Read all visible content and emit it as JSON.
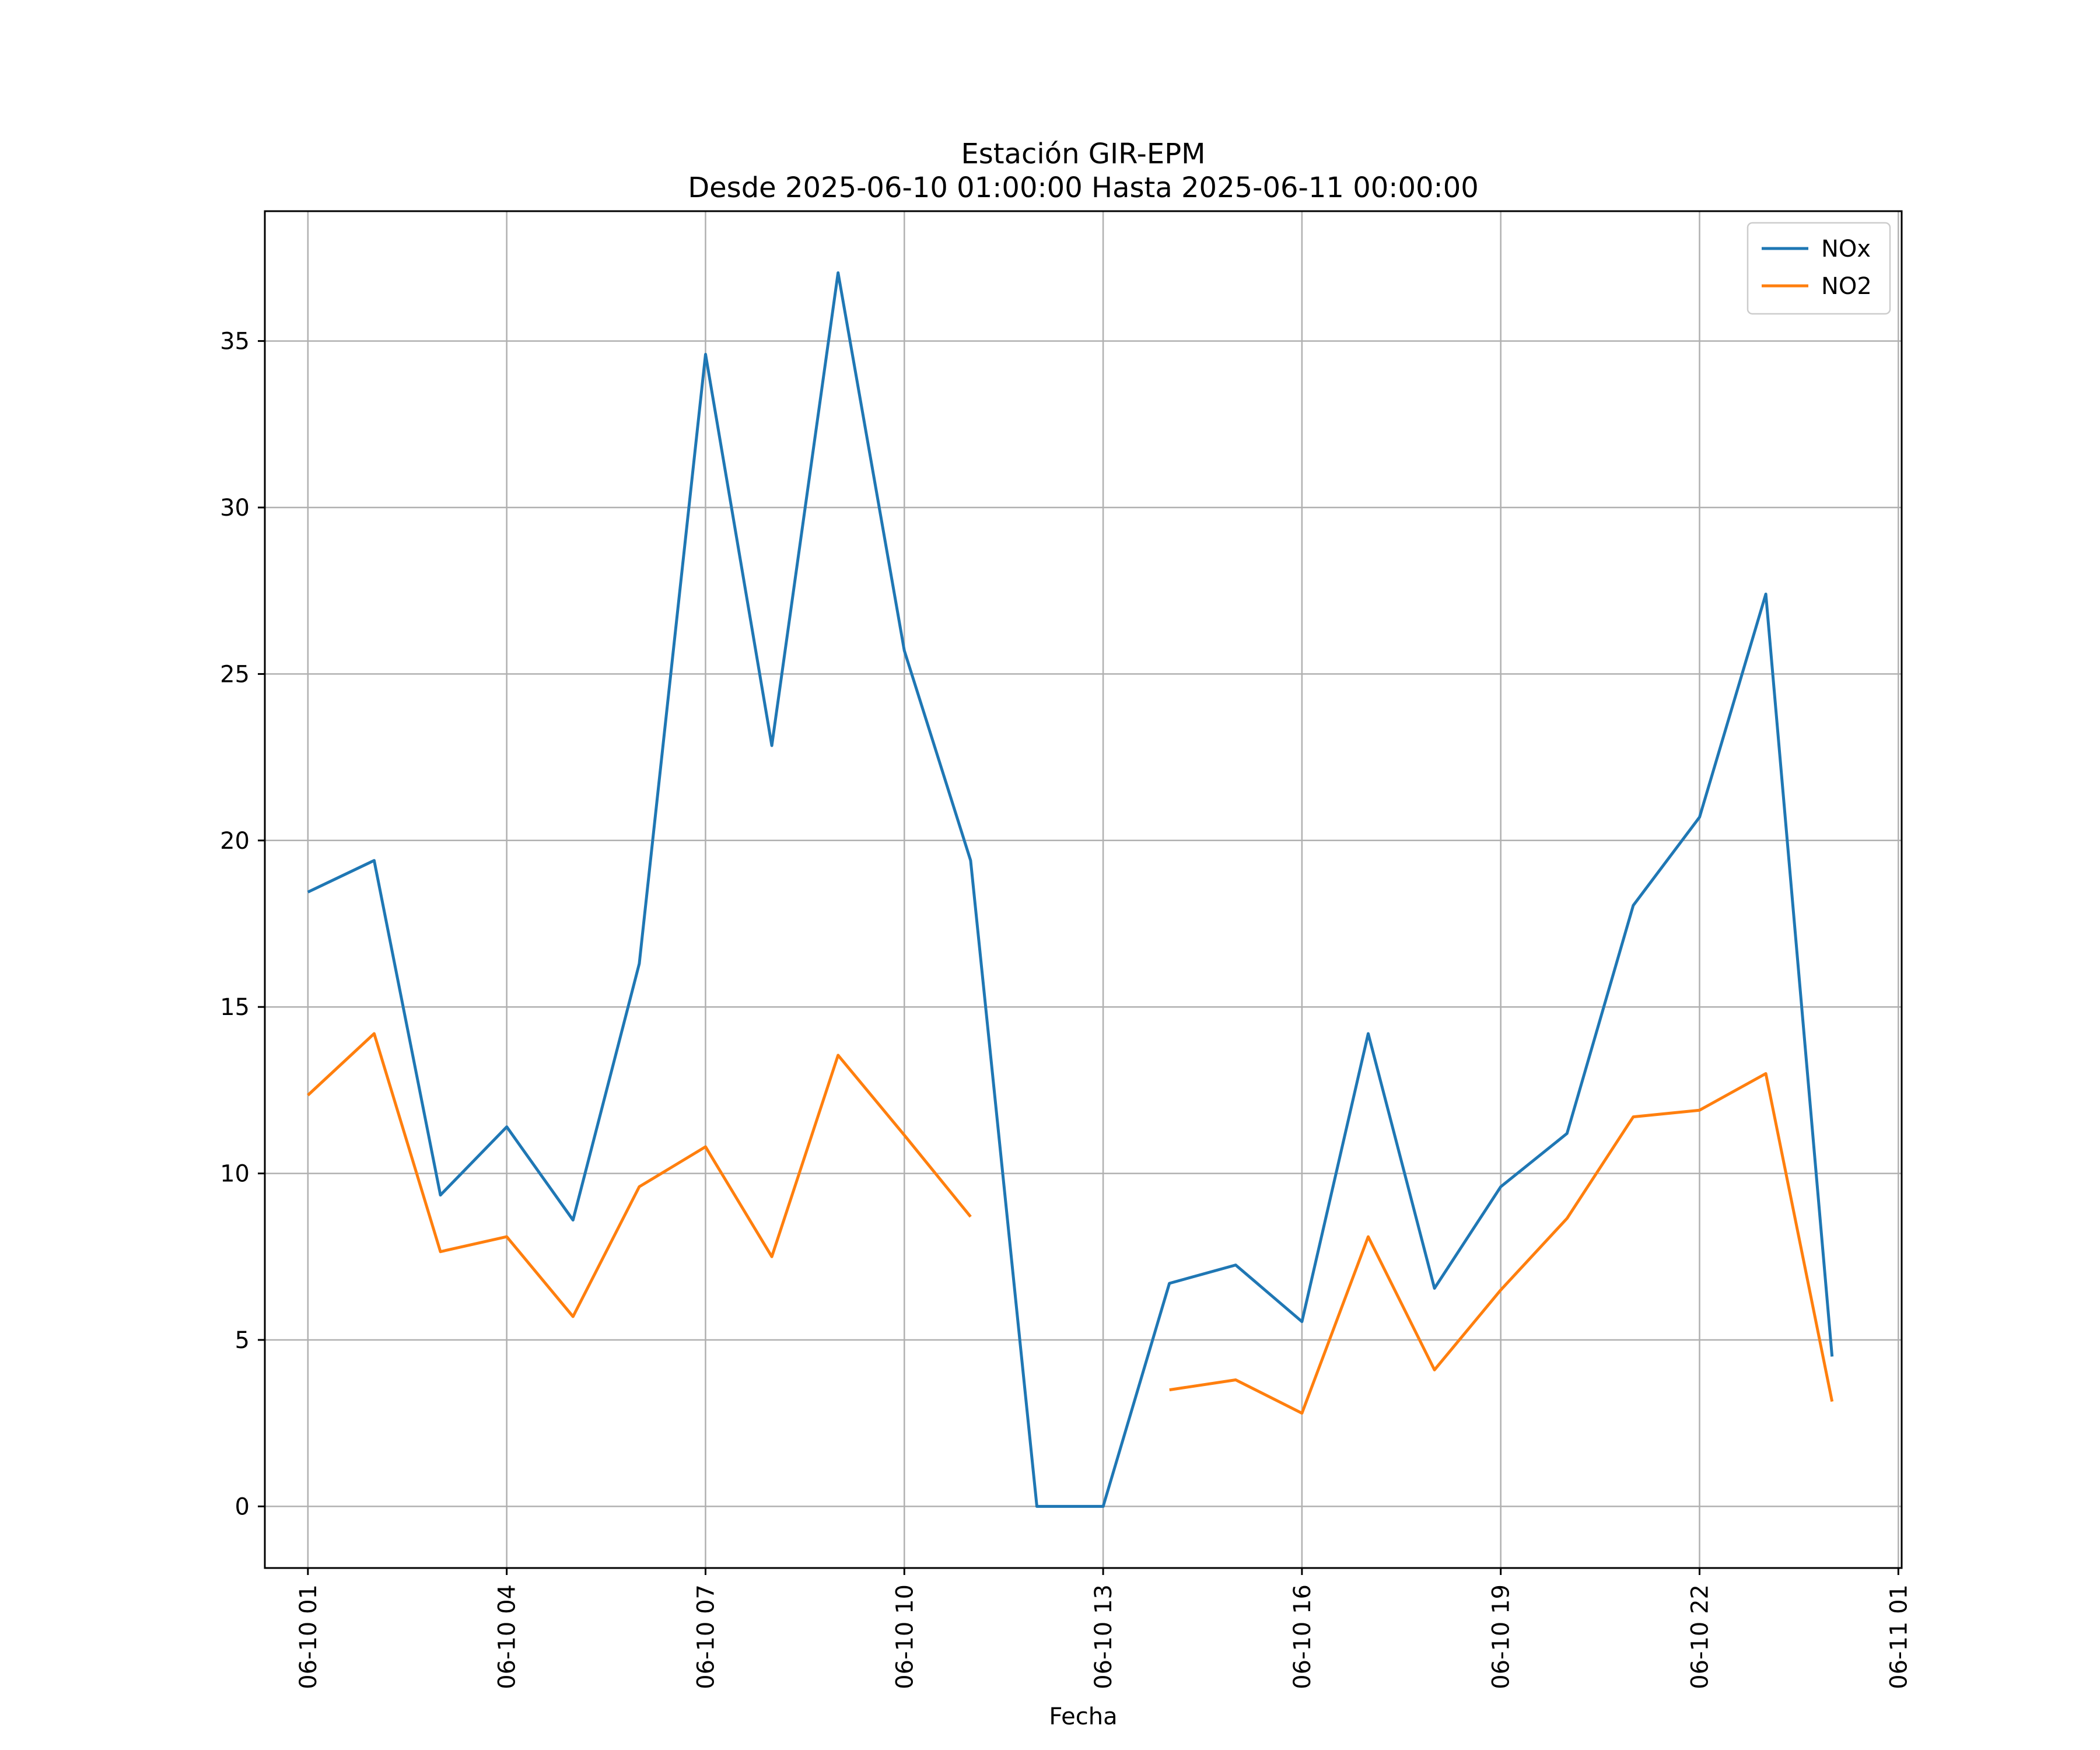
{
  "chart_data": {
    "type": "line",
    "title": "Estación GIR-EPM",
    "subtitle": "Desde 2025-06-10 01:00:00 Hasta 2025-06-11 00:00:00",
    "xlabel": "Fecha",
    "ylabel": "",
    "x": [
      "06-10 01",
      "06-10 02",
      "06-10 03",
      "06-10 04",
      "06-10 05",
      "06-10 06",
      "06-10 07",
      "06-10 08",
      "06-10 09",
      "06-10 10",
      "06-10 11",
      "06-10 12",
      "06-10 13",
      "06-10 14",
      "06-10 15",
      "06-10 16",
      "06-10 17",
      "06-10 18",
      "06-10 19",
      "06-10 20",
      "06-10 21",
      "06-10 22",
      "06-10 23",
      "06-11 00"
    ],
    "x_tick_labels": [
      "06-10 01",
      "06-10 04",
      "06-10 07",
      "06-10 10",
      "06-10 13",
      "06-10 16",
      "06-10 19",
      "06-10 22",
      "06-11 01"
    ],
    "xlim": [
      "06-10 00:21",
      "06-11 01:03"
    ],
    "y_ticks": [
      0,
      5,
      10,
      15,
      20,
      25,
      30,
      35
    ],
    "ylim": [
      -1.85,
      38.9
    ],
    "grid": true,
    "legend_position": "top-right",
    "series": [
      {
        "name": "NOx",
        "color": "#1f77b4",
        "values": [
          18.45,
          19.4,
          9.35,
          11.4,
          8.6,
          16.3,
          34.6,
          22.85,
          37.05,
          25.7,
          19.4,
          0.0,
          0.0,
          6.7,
          7.25,
          5.55,
          14.2,
          6.55,
          9.6,
          11.2,
          18.05,
          20.7,
          27.4,
          4.5
        ]
      },
      {
        "name": "NO2",
        "color": "#ff7f0e",
        "values": [
          12.35,
          14.2,
          7.65,
          8.1,
          5.7,
          9.6,
          10.8,
          7.5,
          13.55,
          11.15,
          8.7,
          null,
          null,
          3.5,
          3.8,
          2.8,
          8.1,
          4.1,
          6.5,
          8.65,
          11.7,
          11.9,
          13.0,
          3.15
        ]
      }
    ]
  }
}
